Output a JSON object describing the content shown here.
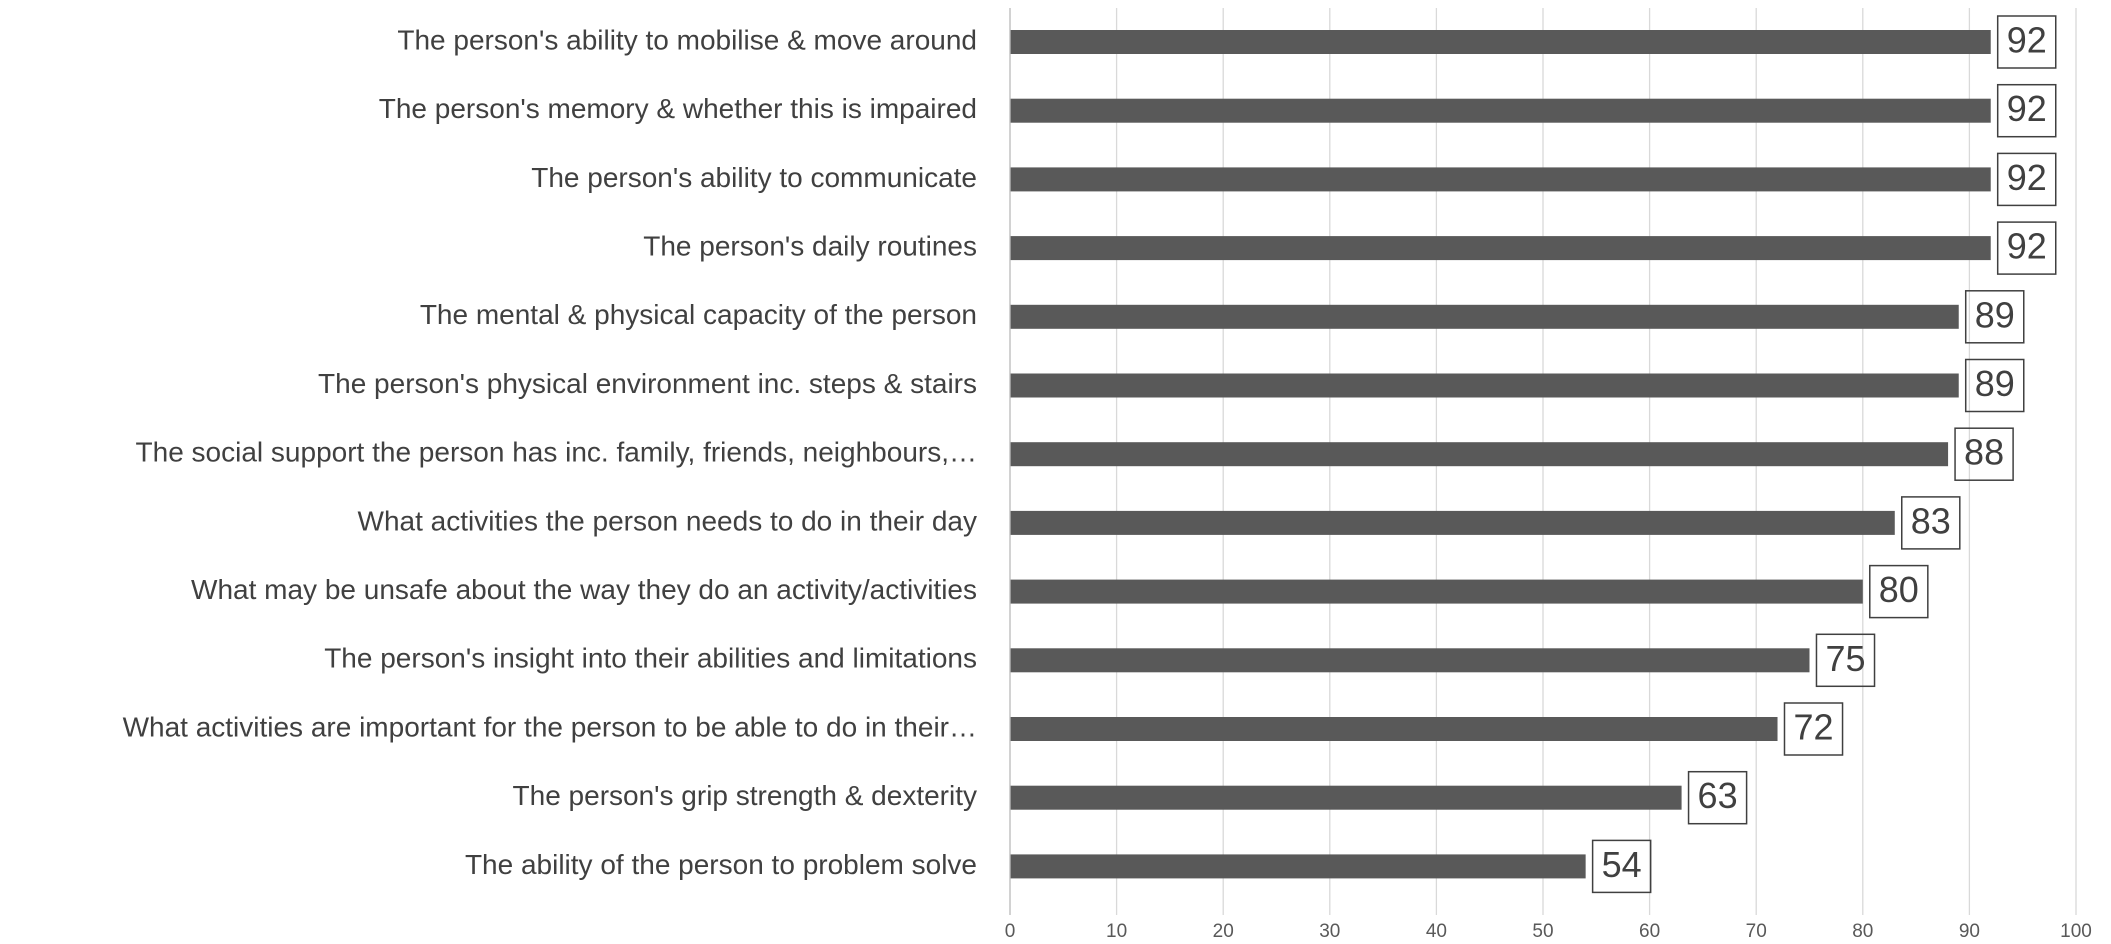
{
  "chart_data": {
    "type": "barh",
    "categories": [
      "The person's ability to mobilise & move around",
      "The person's memory & whether this is impaired",
      "The person's ability to communicate",
      "The person's daily routines",
      "The mental & physical capacity of the person",
      "The person's physical environment inc. steps & stairs",
      "The social support the person has inc. family, friends, neighbours,…",
      "What activities the person needs to do in their day",
      "What may be unsafe about the way they do an activity/activities",
      "The person's insight into their abilities and limitations",
      "What activities are important for the person to be able to do in their…",
      "The person's grip strength & dexterity",
      "The ability of the person to problem solve"
    ],
    "values": [
      92,
      92,
      92,
      92,
      89,
      89,
      88,
      83,
      80,
      75,
      72,
      63,
      54
    ],
    "color": "#595959",
    "xlim": [
      0,
      100
    ],
    "xticks": [
      0,
      10,
      20,
      30,
      40,
      50,
      60,
      70,
      80,
      90,
      100
    ],
    "grid": true
  }
}
